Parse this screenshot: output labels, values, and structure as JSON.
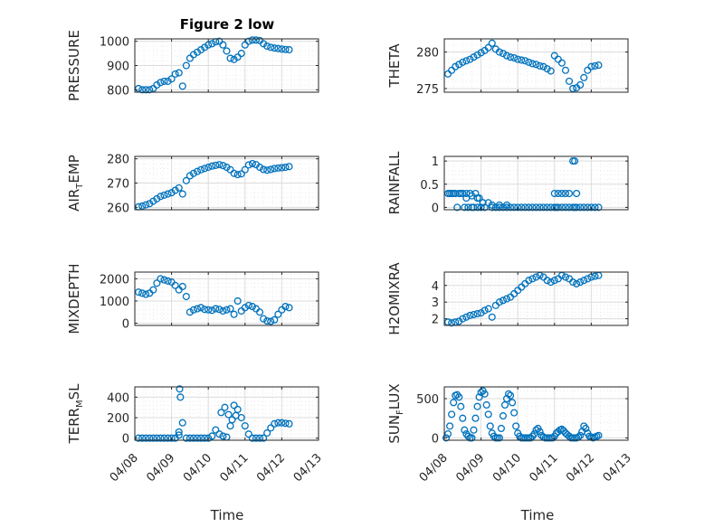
{
  "figure": {
    "title": "Figure 2 low",
    "x_axis_label": "Time",
    "x_tick_labels": [
      "04/08",
      "04/09",
      "04/10",
      "04/11",
      "04/12",
      "04/13"
    ]
  },
  "colors": {
    "marker": "#0072bd",
    "axes": "#262626",
    "grid": "#dcdcdc",
    "background": "#ffffff"
  },
  "chart_data": [
    {
      "id": "pressure",
      "type": "scatter",
      "ylabel": "PRESSURE",
      "ylim": [
        790,
        1010
      ],
      "yticks": [
        800,
        900,
        1000
      ],
      "ytick_labels": [
        "800",
        "900",
        "1000"
      ],
      "xlim": [
        "04/08",
        "04/13"
      ],
      "grid": true,
      "x": [
        0.1,
        0.2,
        0.3,
        0.4,
        0.5,
        0.6,
        0.7,
        0.8,
        0.9,
        1.0,
        1.1,
        1.2,
        1.3,
        1.4,
        1.5,
        1.6,
        1.7,
        1.8,
        1.9,
        2.0,
        2.1,
        2.2,
        2.3,
        2.4,
        2.5,
        2.6,
        2.7,
        2.8,
        2.9,
        3.0,
        3.1,
        3.2,
        3.3,
        3.4,
        3.5,
        3.6,
        3.7,
        3.8,
        3.9,
        4.0,
        4.1,
        4.2
      ],
      "y": [
        805,
        800,
        800,
        800,
        805,
        820,
        830,
        835,
        835,
        845,
        865,
        870,
        815,
        900,
        930,
        945,
        955,
        965,
        975,
        985,
        990,
        998,
        1000,
        985,
        960,
        930,
        925,
        935,
        950,
        985,
        1000,
        1005,
        1005,
        1003,
        990,
        980,
        975,
        972,
        970,
        968,
        966,
        965
      ]
    },
    {
      "id": "theta",
      "type": "scatter",
      "ylabel": "THETA",
      "ylim": [
        274.5,
        281.8
      ],
      "yticks": [
        275,
        280
      ],
      "ytick_labels": [
        "275",
        "280"
      ],
      "xlim": [
        "04/08",
        "04/13"
      ],
      "grid": true,
      "x": [
        0.1,
        0.2,
        0.3,
        0.4,
        0.5,
        0.6,
        0.7,
        0.8,
        0.9,
        1.0,
        1.1,
        1.2,
        1.3,
        1.4,
        1.5,
        1.6,
        1.7,
        1.8,
        1.9,
        2.0,
        2.1,
        2.2,
        2.3,
        2.4,
        2.5,
        2.6,
        2.7,
        2.8,
        2.9,
        3.0,
        3.1,
        3.2,
        3.3,
        3.4,
        3.5,
        3.6,
        3.7,
        3.8,
        3.9,
        4.0,
        4.1,
        4.2
      ],
      "y": [
        277,
        277.5,
        278,
        278.3,
        278.6,
        278.8,
        279,
        279.3,
        279.6,
        279.9,
        280.2,
        280.6,
        281.2,
        280.4,
        280,
        279.8,
        279.5,
        279.3,
        279.2,
        279,
        278.9,
        278.8,
        278.6,
        278.4,
        278.3,
        278.1,
        278,
        277.7,
        277.4,
        279.5,
        279,
        278.5,
        277.5,
        276,
        275,
        275.1,
        275.5,
        276.5,
        277.5,
        278,
        278.1,
        278.2
      ]
    },
    {
      "id": "air_temp",
      "type": "scatter",
      "ylabel": "AIR_TEMP",
      "ylim": [
        259,
        281
      ],
      "yticks": [
        260,
        270,
        280
      ],
      "ytick_labels": [
        "260",
        "270",
        "280"
      ],
      "xlim": [
        "04/08",
        "04/13"
      ],
      "grid": true,
      "x": [
        0.1,
        0.2,
        0.3,
        0.4,
        0.5,
        0.6,
        0.7,
        0.8,
        0.9,
        1.0,
        1.1,
        1.2,
        1.3,
        1.4,
        1.5,
        1.6,
        1.7,
        1.8,
        1.9,
        2.0,
        2.1,
        2.2,
        2.3,
        2.4,
        2.5,
        2.6,
        2.7,
        2.8,
        2.9,
        3.0,
        3.1,
        3.2,
        3.3,
        3.4,
        3.5,
        3.6,
        3.7,
        3.8,
        3.9,
        4.0,
        4.1,
        4.2
      ],
      "y": [
        260.2,
        260.5,
        261,
        261.5,
        262.5,
        263.5,
        264.5,
        265,
        265.5,
        266,
        267,
        268,
        265.5,
        271,
        273,
        274,
        274.8,
        275.5,
        276,
        276.5,
        277,
        277.3,
        277.6,
        277.2,
        276.5,
        275.5,
        274,
        273.5,
        273.8,
        275.5,
        277.5,
        278,
        277.6,
        276.5,
        275.6,
        275.3,
        275.6,
        276,
        276.2,
        276.3,
        276.5,
        276.8
      ]
    },
    {
      "id": "rainfall",
      "type": "scatter",
      "ylabel": "RAINFALL",
      "ylim": [
        -0.05,
        1.1
      ],
      "yticks": [
        0,
        0.5,
        1
      ],
      "ytick_labels": [
        "0",
        "0.5",
        "1"
      ],
      "xlim": [
        "04/08",
        "04/13"
      ],
      "grid": true,
      "x": [
        0.1,
        0.15,
        0.2,
        0.25,
        0.3,
        0.35,
        0.4,
        0.45,
        0.5,
        0.55,
        0.6,
        0.65,
        0.7,
        0.75,
        0.8,
        0.85,
        0.9,
        0.95,
        1.0,
        1.05,
        1.1,
        1.2,
        1.3,
        1.4,
        1.5,
        1.6,
        1.7,
        1.8,
        1.9,
        2.0,
        2.1,
        2.2,
        2.3,
        2.4,
        2.5,
        2.6,
        2.7,
        2.8,
        2.9,
        3.0,
        3.05,
        3.1,
        3.2,
        3.3,
        3.4,
        3.5,
        3.55,
        3.6,
        3.7,
        3.8,
        3.9,
        4.0,
        4.1,
        4.2,
        3.0,
        3.1,
        3.2,
        3.3,
        3.4,
        3.5,
        3.55,
        3.6,
        0.6,
        0.75,
        0.9,
        1.05,
        1.3,
        1.5,
        1.7
      ],
      "y": [
        0.3,
        0.3,
        0.3,
        0.3,
        0.3,
        0,
        0.3,
        0.3,
        0.3,
        0,
        0.3,
        0,
        0.3,
        0,
        0,
        0.3,
        0,
        0.2,
        0,
        0.1,
        0,
        0.1,
        0,
        0,
        0,
        0,
        0,
        0,
        0,
        0,
        0,
        0,
        0,
        0,
        0,
        0,
        0,
        0,
        0,
        0,
        0,
        0,
        0,
        0,
        0,
        0,
        0,
        0,
        0,
        0,
        0,
        0,
        0,
        0,
        0.3,
        0.3,
        0.3,
        0.3,
        0.3,
        1,
        1,
        0.3,
        0.2,
        0.25,
        0.2,
        0.1,
        0.05,
        0.05,
        0.05
      ]
    },
    {
      "id": "mixdepth",
      "type": "scatter",
      "ylabel": "MIXDEPTH",
      "ylim": [
        -100,
        2300
      ],
      "yticks": [
        0,
        1000,
        2000
      ],
      "ytick_labels": [
        "0",
        "1000",
        "2000"
      ],
      "xlim": [
        "04/08",
        "04/13"
      ],
      "grid": true,
      "x": [
        0.1,
        0.2,
        0.3,
        0.4,
        0.5,
        0.6,
        0.7,
        0.8,
        0.9,
        1.0,
        1.1,
        1.2,
        1.3,
        1.4,
        1.5,
        1.6,
        1.7,
        1.8,
        1.9,
        2.0,
        2.1,
        2.2,
        2.3,
        2.4,
        2.5,
        2.6,
        2.7,
        2.8,
        2.9,
        3.0,
        3.1,
        3.2,
        3.3,
        3.4,
        3.5,
        3.6,
        3.7,
        3.8,
        3.9,
        4.0,
        4.1,
        4.2
      ],
      "y": [
        1400,
        1350,
        1300,
        1350,
        1500,
        1800,
        2000,
        1950,
        1900,
        1850,
        1700,
        1500,
        1650,
        1200,
        500,
        600,
        650,
        700,
        620,
        600,
        580,
        650,
        620,
        550,
        600,
        650,
        400,
        1000,
        550,
        700,
        800,
        750,
        650,
        500,
        200,
        100,
        80,
        150,
        400,
        600,
        750,
        700
      ]
    },
    {
      "id": "h2omixra",
      "type": "scatter",
      "ylabel": "H2OMIXRA",
      "ylim": [
        1.6,
        4.8
      ],
      "yticks": [
        2,
        3,
        4
      ],
      "ytick_labels": [
        "2",
        "3",
        "4"
      ],
      "xlim": [
        "04/08",
        "04/13"
      ],
      "grid": true,
      "x": [
        0.1,
        0.2,
        0.3,
        0.4,
        0.5,
        0.6,
        0.7,
        0.8,
        0.9,
        1.0,
        1.1,
        1.2,
        1.3,
        1.4,
        1.5,
        1.6,
        1.7,
        1.8,
        1.9,
        2.0,
        2.1,
        2.2,
        2.3,
        2.4,
        2.5,
        2.6,
        2.7,
        2.8,
        2.9,
        3.0,
        3.1,
        3.2,
        3.3,
        3.4,
        3.5,
        3.6,
        3.7,
        3.8,
        3.9,
        4.0,
        4.1,
        4.2
      ],
      "y": [
        1.8,
        1.75,
        1.8,
        1.85,
        2.0,
        2.1,
        2.2,
        2.25,
        2.3,
        2.35,
        2.5,
        2.6,
        2.1,
        2.8,
        3.0,
        3.1,
        3.2,
        3.3,
        3.5,
        3.7,
        3.9,
        4.1,
        4.3,
        4.4,
        4.5,
        4.6,
        4.5,
        4.3,
        4.2,
        4.3,
        4.4,
        4.6,
        4.5,
        4.4,
        4.2,
        4.1,
        4.2,
        4.3,
        4.4,
        4.5,
        4.55,
        4.6
      ]
    },
    {
      "id": "terr_msl",
      "type": "scatter",
      "ylabel": "TERR_MSL",
      "ylim": [
        -20,
        500
      ],
      "yticks": [
        0,
        200,
        400
      ],
      "ytick_labels": [
        "0",
        "200",
        "400"
      ],
      "xlim": [
        "04/08",
        "04/13"
      ],
      "grid": true,
      "x": [
        0.1,
        0.2,
        0.3,
        0.4,
        0.5,
        0.6,
        0.7,
        0.8,
        0.9,
        1.0,
        1.1,
        1.2,
        1.3,
        1.4,
        1.5,
        1.6,
        1.7,
        1.8,
        1.9,
        2.0,
        2.1,
        2.2,
        2.3,
        2.4,
        2.5,
        2.6,
        2.7,
        2.8,
        2.9,
        3.0,
        3.1,
        3.2,
        3.3,
        3.4,
        3.5,
        3.6,
        3.7,
        3.8,
        3.9,
        4.0,
        4.1,
        4.2,
        1.22,
        1.24,
        1.2,
        2.35,
        2.45,
        2.55,
        2.65,
        2.75
      ],
      "y": [
        0,
        0,
        0,
        0,
        0,
        0,
        0,
        0,
        0,
        0,
        0,
        30,
        150,
        0,
        0,
        0,
        0,
        0,
        0,
        0,
        20,
        80,
        40,
        20,
        10,
        120,
        320,
        280,
        200,
        120,
        40,
        0,
        0,
        0,
        0,
        50,
        100,
        140,
        150,
        150,
        145,
        140,
        480,
        400,
        60,
        250,
        300,
        230,
        180,
        220
      ]
    },
    {
      "id": "sun_flux",
      "type": "scatter",
      "ylabel": "SUN_FLUX",
      "ylim": [
        -30,
        650
      ],
      "yticks": [
        0,
        500
      ],
      "ytick_labels": [
        "0",
        "500"
      ],
      "xlim": [
        "04/08",
        "04/13"
      ],
      "grid": true,
      "x": [
        0.05,
        0.1,
        0.15,
        0.2,
        0.25,
        0.3,
        0.35,
        0.4,
        0.45,
        0.5,
        0.55,
        0.6,
        0.65,
        0.7,
        0.75,
        0.8,
        0.85,
        0.9,
        0.95,
        1.0,
        1.05,
        1.1,
        1.15,
        1.2,
        1.25,
        1.3,
        1.35,
        1.4,
        1.45,
        1.5,
        1.55,
        1.6,
        1.65,
        1.7,
        1.75,
        1.8,
        1.85,
        1.9,
        1.95,
        2.0,
        2.05,
        2.1,
        2.15,
        2.2,
        2.25,
        2.3,
        2.35,
        2.4,
        2.45,
        2.5,
        2.55,
        2.6,
        2.65,
        2.7,
        2.75,
        2.8,
        2.85,
        2.9,
        2.95,
        3.0,
        3.05,
        3.1,
        3.15,
        3.2,
        3.25,
        3.3,
        3.35,
        3.4,
        3.45,
        3.5,
        3.55,
        3.6,
        3.65,
        3.7,
        3.75,
        3.8,
        3.85,
        3.9,
        3.95,
        4.0,
        4.05,
        4.1,
        4.15,
        4.2
      ],
      "y": [
        0,
        50,
        150,
        300,
        450,
        540,
        550,
        520,
        400,
        250,
        100,
        50,
        20,
        0,
        0,
        100,
        250,
        400,
        520,
        580,
        600,
        560,
        420,
        300,
        150,
        60,
        20,
        0,
        0,
        0,
        120,
        280,
        420,
        500,
        560,
        540,
        450,
        320,
        150,
        60,
        20,
        0,
        0,
        0,
        0,
        0,
        0,
        20,
        50,
        100,
        120,
        80,
        30,
        10,
        0,
        0,
        0,
        0,
        0,
        20,
        60,
        80,
        100,
        110,
        90,
        60,
        40,
        20,
        0,
        0,
        0,
        0,
        10,
        30,
        80,
        150,
        120,
        60,
        20,
        10,
        0,
        10,
        20,
        30
      ]
    }
  ]
}
